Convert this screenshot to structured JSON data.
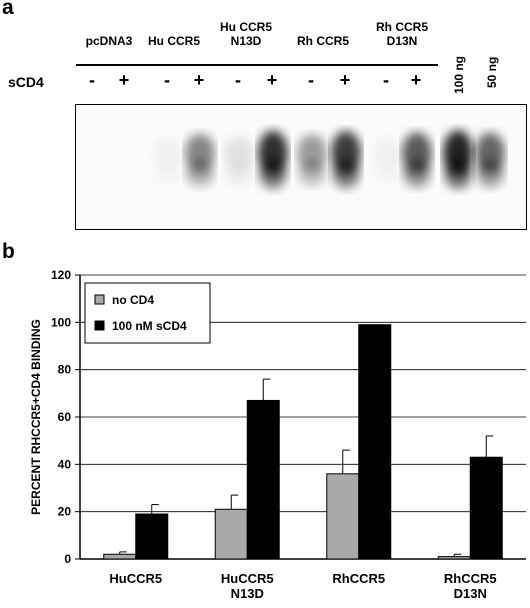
{
  "panel_a": {
    "label": "a",
    "treatment_label": "sCD4",
    "lanes": [
      {
        "name": "pcDNA3",
        "signs": [
          "-",
          "+"
        ]
      },
      {
        "name": "Hu CCR5",
        "signs": [
          "-",
          "+"
        ]
      },
      {
        "name": "Hu CCR5\nN13D",
        "signs": [
          "-",
          "+"
        ]
      },
      {
        "name": "Rh CCR5",
        "signs": [
          "-",
          "+"
        ]
      },
      {
        "name": "Rh CCR5\nD13N",
        "signs": [
          "-",
          "+"
        ]
      }
    ],
    "standards": [
      "100 ng",
      "50 ng"
    ],
    "blot_band_intensity": [
      0,
      0,
      0.05,
      0.55,
      0.12,
      0.95,
      0.45,
      0.9,
      0.05,
      0.75,
      1.0,
      0.7
    ]
  },
  "panel_b": {
    "label": "b",
    "chart_data": {
      "type": "bar",
      "categories": [
        "HuCCR5",
        "HuCCR5\nN13D",
        "RhCCR5",
        "RhCCR5\nD13N"
      ],
      "series": [
        {
          "name": "no CD4",
          "color": "#a9a9a9",
          "values": [
            2,
            21,
            36,
            1
          ],
          "errors": [
            1,
            6,
            10,
            1
          ]
        },
        {
          "name": "100 nM sCD4",
          "color": "#000000",
          "values": [
            19,
            67,
            99,
            43
          ],
          "errors": [
            4,
            9,
            0,
            9
          ]
        }
      ],
      "ylabel": "PERCENT RHCCR5+CD4 BINDING",
      "ylim": [
        0,
        120
      ],
      "yticks": [
        0,
        20,
        40,
        60,
        80,
        100,
        120
      ],
      "grid": true,
      "legend_position": "top-left"
    }
  }
}
